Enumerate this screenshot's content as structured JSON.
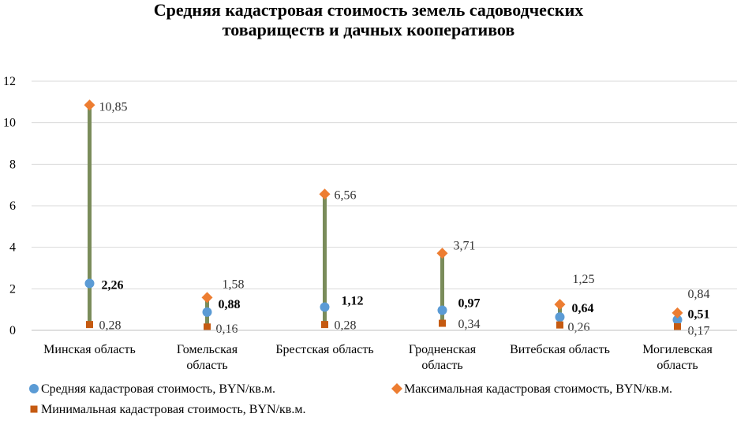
{
  "chart_data": {
    "type": "line",
    "title_lines": [
      "Средняя кадастровая стоимость земель садоводческих",
      "товариществ и дачных кооперативов"
    ],
    "xlabel": "",
    "ylabel": "",
    "ylim": [
      0,
      12
    ],
    "yticks": [
      "0",
      "2",
      "4",
      "6",
      "8",
      "10",
      "12"
    ],
    "grid": true,
    "legend_position": "bottom",
    "categories": [
      [
        "Минская область"
      ],
      [
        "Гомельская",
        "область"
      ],
      [
        "Брестская область"
      ],
      [
        "Гродненская",
        "область"
      ],
      [
        "Витебская область"
      ],
      [
        "Могилевская",
        "область"
      ]
    ],
    "series": [
      {
        "name": "Средняя кадастровая стоимость, BYN/кв.м.",
        "marker": "circle",
        "color": "#5B9BD5",
        "values": [
          2.26,
          0.88,
          1.12,
          0.97,
          0.64,
          0.51
        ],
        "labels": [
          "2,26",
          "0,88",
          "1,12",
          "0,97",
          "0,64",
          "0,51"
        ],
        "bold_labels": true
      },
      {
        "name": "Максимальная кадастровая стоимость, BYN/кв.м.",
        "marker": "diamond",
        "color": "#ED7D31",
        "values": [
          10.85,
          1.58,
          6.56,
          3.71,
          1.25,
          0.84
        ],
        "labels": [
          "10,85",
          "1,58",
          "6,56",
          "3,71",
          "1,25",
          "0,84"
        ],
        "bold_labels": false
      },
      {
        "name": "Минимальная кадастровая стоимость, BYN/кв.м.",
        "marker": "square",
        "color": "#C55A11",
        "values": [
          0.28,
          0.16,
          0.28,
          0.34,
          0.26,
          0.17
        ],
        "labels": [
          "0,28",
          "0,16",
          "0,28",
          "0,34",
          "0,26",
          "0,17"
        ],
        "bold_labels": false
      }
    ],
    "hi_lo_line_color": "#7A8C5A"
  }
}
